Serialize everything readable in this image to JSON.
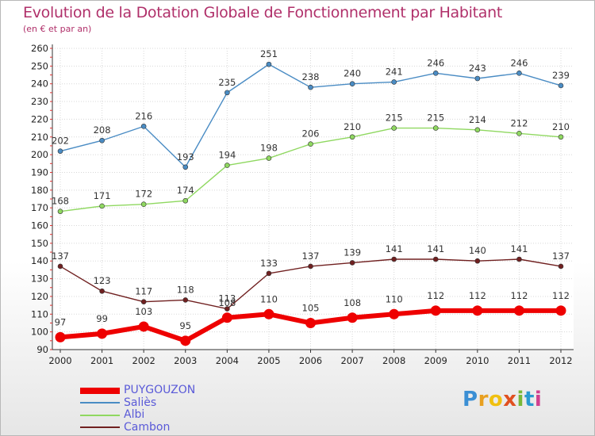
{
  "title": "Evolution de la Dotation Globale de Fonctionnement par Habitant",
  "subtitle": "(en € et par an)",
  "brand": {
    "letters": [
      "P",
      "r",
      "o",
      "x",
      "i",
      "t",
      "i"
    ],
    "colors": [
      "#3b8fd4",
      "#e8a020",
      "#f0c010",
      "#e05020",
      "#78b838",
      "#2a9ad0",
      "#d04090"
    ]
  },
  "chart_data": {
    "type": "line",
    "x": [
      "2000",
      "2001",
      "2002",
      "2003",
      "2004",
      "2005",
      "2006",
      "2007",
      "2008",
      "2009",
      "2010",
      "2011",
      "2012"
    ],
    "ylim": [
      90,
      260
    ],
    "yticks": [
      90,
      100,
      110,
      120,
      130,
      140,
      150,
      160,
      170,
      180,
      190,
      200,
      210,
      220,
      230,
      240,
      250,
      260
    ],
    "grid": true,
    "legend_position": "bottom-left",
    "series": [
      {
        "name": "PUYGOUZON",
        "color": "#ee0000",
        "values": [
          97,
          99,
          103,
          95,
          108,
          110,
          105,
          108,
          110,
          112,
          112,
          112,
          112
        ]
      },
      {
        "name": "Saliès",
        "color": "#4a8cc4",
        "values": [
          202,
          208,
          216,
          193,
          235,
          251,
          238,
          240,
          241,
          246,
          243,
          246,
          239
        ]
      },
      {
        "name": "Albi",
        "color": "#8fd860",
        "values": [
          168,
          171,
          172,
          174,
          194,
          198,
          206,
          210,
          215,
          215,
          214,
          212,
          210
        ]
      },
      {
        "name": "Cambon",
        "color": "#702020",
        "values": [
          137,
          123,
          117,
          118,
          113,
          133,
          137,
          139,
          141,
          141,
          140,
          141,
          137
        ]
      }
    ]
  }
}
